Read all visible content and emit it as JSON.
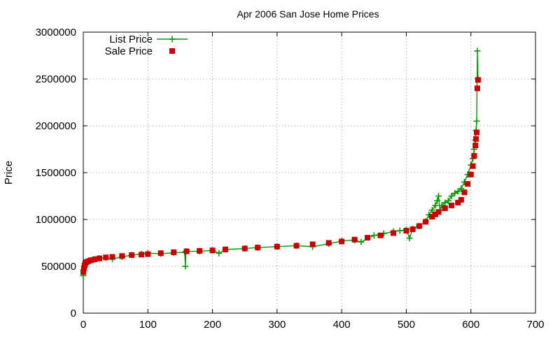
{
  "chart_data": {
    "type": "scatter",
    "title": "Apr 2006 San Jose Home Prices",
    "xlabel": "",
    "ylabel": "Price",
    "xlim": [
      0,
      700
    ],
    "ylim": [
      0,
      3000000
    ],
    "x_ticks": [
      "0",
      "100",
      "200",
      "300",
      "400",
      "500",
      "600",
      "700"
    ],
    "y_ticks": [
      "0",
      "500000",
      "1000000",
      "1500000",
      "2000000",
      "2500000",
      "3000000"
    ],
    "grid": true,
    "legend_position": "top-left",
    "colors": {
      "list": "#009900",
      "sale": "#cc0000"
    },
    "series": [
      {
        "name": "List Price",
        "marker": "plus",
        "line": true,
        "x": [
          0,
          1,
          2,
          3,
          5,
          8,
          12,
          18,
          25,
          35,
          45,
          60,
          75,
          90,
          100,
          120,
          140,
          157,
          158,
          159,
          180,
          200,
          210,
          220,
          250,
          270,
          300,
          330,
          355,
          380,
          400,
          420,
          430,
          450,
          465,
          480,
          490,
          500,
          505,
          510,
          520,
          530,
          535,
          540,
          545,
          548,
          550,
          552,
          555,
          560,
          565,
          570,
          575,
          580,
          585,
          590,
          595,
          600,
          603,
          605,
          607,
          608,
          609,
          610,
          611
        ],
        "values": [
          400000,
          460000,
          490000,
          520000,
          540000,
          555000,
          565000,
          575000,
          585000,
          590000,
          580000,
          600000,
          620000,
          630000,
          640000,
          635000,
          645000,
          650000,
          500000,
          660000,
          660000,
          670000,
          640000,
          680000,
          690000,
          700000,
          710000,
          720000,
          710000,
          740000,
          770000,
          780000,
          760000,
          830000,
          850000,
          870000,
          880000,
          890000,
          800000,
          900000,
          930000,
          980000,
          1050000,
          1100000,
          1150000,
          1200000,
          1250000,
          1100000,
          1150000,
          1180000,
          1200000,
          1250000,
          1280000,
          1300000,
          1330000,
          1400000,
          1480000,
          1580000,
          1650000,
          1750000,
          1850000,
          1950000,
          2050000,
          2800000,
          2500000
        ]
      },
      {
        "name": "Sale Price",
        "marker": "square",
        "line": false,
        "x": [
          0,
          1,
          2,
          3,
          5,
          8,
          12,
          18,
          25,
          35,
          45,
          60,
          75,
          90,
          100,
          120,
          140,
          160,
          180,
          200,
          220,
          250,
          270,
          300,
          330,
          355,
          380,
          400,
          420,
          440,
          460,
          480,
          500,
          510,
          520,
          530,
          540,
          545,
          550,
          560,
          570,
          580,
          585,
          590,
          595,
          600,
          603,
          605,
          607,
          608,
          609,
          610,
          611
        ],
        "values": [
          440000,
          480000,
          510000,
          530000,
          545000,
          555000,
          565000,
          575000,
          585000,
          595000,
          600000,
          610000,
          620000,
          625000,
          630000,
          640000,
          650000,
          660000,
          665000,
          670000,
          680000,
          690000,
          700000,
          710000,
          720000,
          735000,
          750000,
          765000,
          785000,
          805000,
          830000,
          855000,
          880000,
          895000,
          930000,
          975000,
          1030000,
          1055000,
          1080000,
          1120000,
          1150000,
          1180000,
          1210000,
          1290000,
          1380000,
          1480000,
          1570000,
          1680000,
          1790000,
          1860000,
          1930000,
          2400000,
          2490000
        ]
      }
    ]
  }
}
